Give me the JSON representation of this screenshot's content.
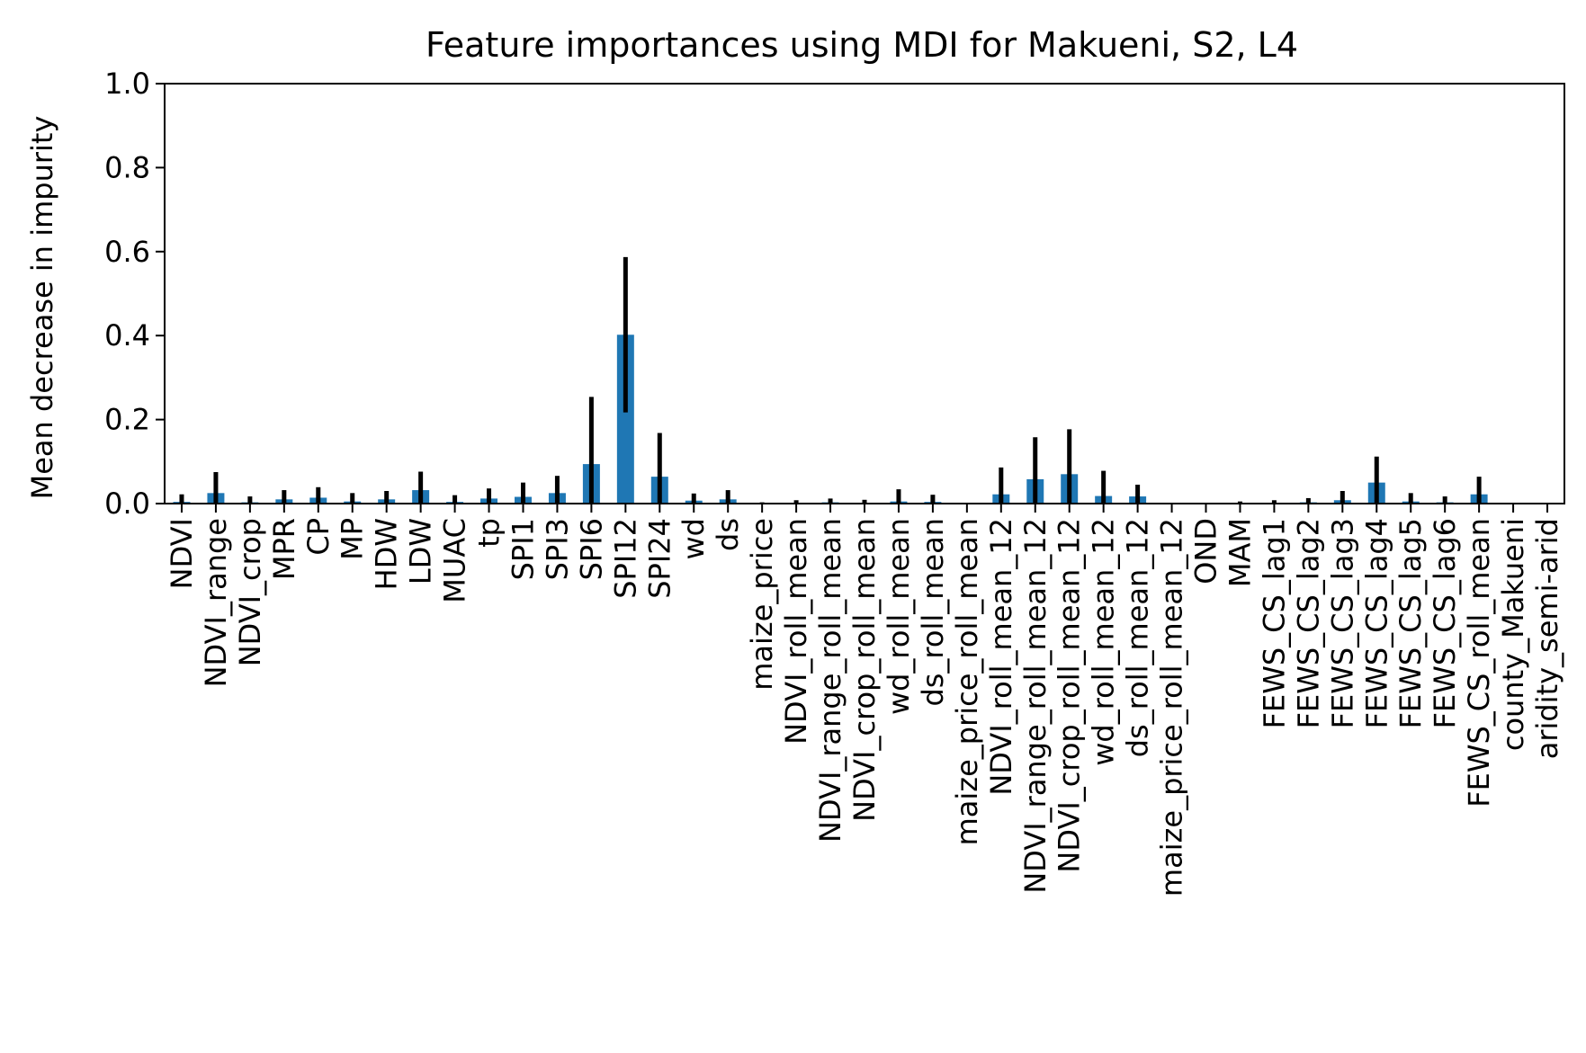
{
  "chart_data": {
    "type": "bar",
    "title": "Feature importances using MDI for Makueni, S2, L4",
    "xlabel": "",
    "ylabel": "Mean decrease in impurity",
    "ylim": [
      0,
      1.0
    ],
    "yticks": [
      "0.0",
      "0.2",
      "0.4",
      "0.6",
      "0.8",
      "1.0"
    ],
    "grid": false,
    "bar_color": "#1f77b4",
    "error_color": "#000000",
    "categories": [
      "NDVI",
      "NDVI_range",
      "NDVI_crop",
      "MPR",
      "CP",
      "MP",
      "HDW",
      "LDW",
      "MUAC",
      "tp",
      "SPI1",
      "SPI3",
      "SPI6",
      "SPI12",
      "SPI24",
      "wd",
      "ds",
      "maize_price",
      "NDVI_roll_mean",
      "NDVI_range_roll_mean",
      "NDVI_crop_roll_mean",
      "wd_roll_mean",
      "ds_roll_mean",
      "maize_price_roll_mean",
      "NDVI_roll_mean_12",
      "NDVI_range_roll_mean_12",
      "NDVI_crop_roll_mean_12",
      "wd_roll_mean_12",
      "ds_roll_mean_12",
      "maize_price_roll_mean_12",
      "OND",
      "MAM",
      "FEWS_CS_lag1",
      "FEWS_CS_lag2",
      "FEWS_CS_lag3",
      "FEWS_CS_lag4",
      "FEWS_CS_lag5",
      "FEWS_CS_lag6",
      "FEWS_CS_roll_mean",
      "county_Makueni",
      "aridity_semi-arid"
    ],
    "values": [
      0.004,
      0.025,
      0.003,
      0.01,
      0.014,
      0.005,
      0.01,
      0.032,
      0.004,
      0.012,
      0.016,
      0.025,
      0.094,
      0.402,
      0.064,
      0.007,
      0.01,
      0.001,
      0.002,
      0.003,
      0.002,
      0.005,
      0.004,
      0.0,
      0.022,
      0.058,
      0.07,
      0.018,
      0.017,
      0.0,
      0.0,
      0.001,
      0.002,
      0.003,
      0.008,
      0.05,
      0.005,
      0.003,
      0.022,
      0.0,
      0.0
    ],
    "errors": [
      0.018,
      0.05,
      0.014,
      0.022,
      0.025,
      0.02,
      0.02,
      0.044,
      0.016,
      0.024,
      0.034,
      0.041,
      0.16,
      0.185,
      0.104,
      0.017,
      0.022,
      0.002,
      0.006,
      0.009,
      0.007,
      0.029,
      0.017,
      0.0,
      0.064,
      0.1,
      0.107,
      0.06,
      0.028,
      0.0,
      0.0,
      0.004,
      0.006,
      0.01,
      0.022,
      0.062,
      0.02,
      0.014,
      0.042,
      0.0,
      0.0
    ]
  }
}
